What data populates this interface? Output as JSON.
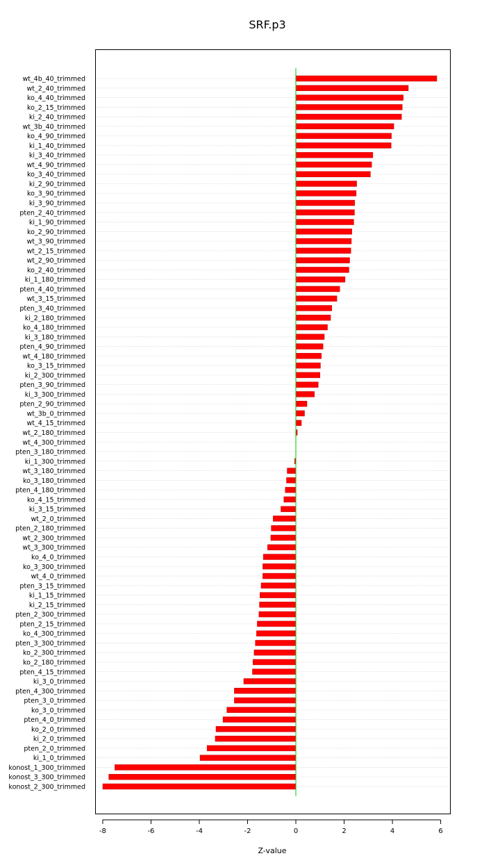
{
  "chart_data": {
    "type": "bar",
    "orientation": "horizontal",
    "title": "SRF.p3",
    "xlabel": "Z-value",
    "ylabel": "",
    "xlim": [
      -8.3,
      6.4
    ],
    "xticks": [
      -8,
      -6,
      -4,
      -2,
      0,
      2,
      4,
      6
    ],
    "grid": "horizontal dotted",
    "bar_color": "#ff0000",
    "zero_line_color": "#00cc00",
    "categories": [
      "wt_4b_40_trimmed",
      "wt_2_40_trimmed",
      "ko_4_40_trimmed",
      "ko_2_15_trimmed",
      "ki_2_40_trimmed",
      "wt_3b_40_trimmed",
      "ko_4_90_trimmed",
      "ki_1_40_trimmed",
      "ki_3_40_trimmed",
      "wt_4_90_trimmed",
      "ko_3_40_trimmed",
      "ki_2_90_trimmed",
      "ko_3_90_trimmed",
      "ki_3_90_trimmed",
      "pten_2_40_trimmed",
      "ki_1_90_trimmed",
      "ko_2_90_trimmed",
      "wt_3_90_trimmed",
      "wt_2_15_trimmed",
      "wt_2_90_trimmed",
      "ko_2_40_trimmed",
      "ki_1_180_trimmed",
      "pten_4_40_trimmed",
      "wt_3_15_trimmed",
      "pten_3_40_trimmed",
      "ki_2_180_trimmed",
      "ko_4_180_trimmed",
      "ki_3_180_trimmed",
      "pten_4_90_trimmed",
      "wt_4_180_trimmed",
      "ko_3_15_trimmed",
      "ki_2_300_trimmed",
      "pten_3_90_trimmed",
      "ki_3_300_trimmed",
      "pten_2_90_trimmed",
      "wt_3b_0_trimmed",
      "wt_4_15_trimmed",
      "wt_2_180_trimmed",
      "wt_4_300_trimmed",
      "pten_3_180_trimmed",
      "ki_1_300_trimmed",
      "wt_3_180_trimmed",
      "ko_3_180_trimmed",
      "pten_4_180_trimmed",
      "ko_4_15_trimmed",
      "ki_3_15_trimmed",
      "wt_2_0_trimmed",
      "pten_2_180_trimmed",
      "wt_2_300_trimmed",
      "wt_3_300_trimmed",
      "ko_4_0_trimmed",
      "ko_3_300_trimmed",
      "wt_4_0_trimmed",
      "pten_3_15_trimmed",
      "ki_1_15_trimmed",
      "ki_2_15_trimmed",
      "pten_2_300_trimmed",
      "pten_2_15_trimmed",
      "ko_4_300_trimmed",
      "pten_3_300_trimmed",
      "ko_2_300_trimmed",
      "ko_2_180_trimmed",
      "pten_4_15_trimmed",
      "ki_3_0_trimmed",
      "pten_4_300_trimmed",
      "pten_3_0_trimmed",
      "ko_3_0_trimmed",
      "pten_4_0_trimmed",
      "ko_2_0_trimmed",
      "ki_2_0_trimmed",
      "pten_2_0_trimmed",
      "ki_1_0_trimmed",
      "konost_1_300_trimmed",
      "konost_3_300_trimmed",
      "konost_2_300_trimmed"
    ],
    "values": [
      5.84,
      4.66,
      4.45,
      4.41,
      4.38,
      4.06,
      3.96,
      3.95,
      3.19,
      3.14,
      3.09,
      2.52,
      2.5,
      2.44,
      2.43,
      2.4,
      2.32,
      2.3,
      2.28,
      2.23,
      2.2,
      2.04,
      1.82,
      1.7,
      1.49,
      1.44,
      1.31,
      1.18,
      1.13,
      1.06,
      1.02,
      1.0,
      0.93,
      0.77,
      0.46,
      0.36,
      0.23,
      0.06,
      0.0,
      0.0,
      -0.05,
      -0.36,
      -0.39,
      -0.44,
      -0.5,
      -0.62,
      -0.94,
      -1.02,
      -1.04,
      -1.17,
      -1.35,
      -1.37,
      -1.37,
      -1.44,
      -1.49,
      -1.51,
      -1.53,
      -1.6,
      -1.63,
      -1.68,
      -1.73,
      -1.78,
      -1.8,
      -2.16,
      -2.55,
      -2.55,
      -2.86,
      -3.02,
      -3.31,
      -3.34,
      -3.68,
      -3.97,
      -7.5,
      -7.75,
      -8.0
    ]
  }
}
